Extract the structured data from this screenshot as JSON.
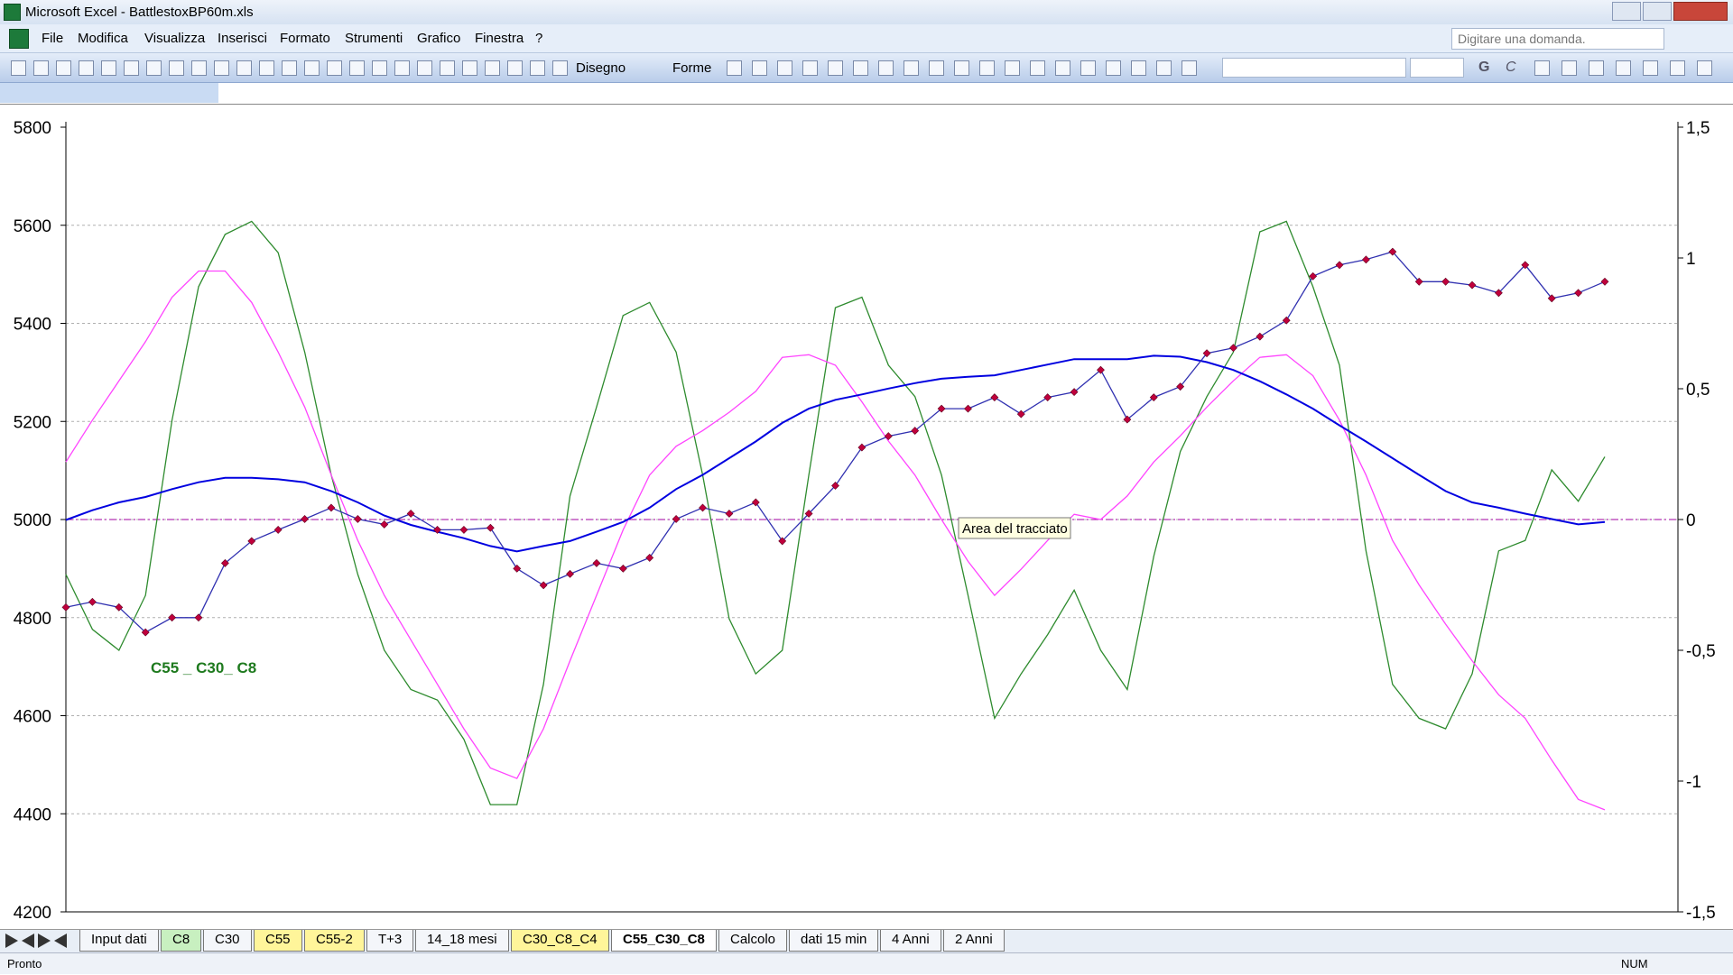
{
  "window": {
    "title": "Microsoft Excel - BattlestoxBP60m.xls"
  },
  "menu": [
    "File",
    "Modifica",
    "Visualizza",
    "Inserisci",
    "Formato",
    "Strumenti",
    "Grafico",
    "Finestra",
    "?"
  ],
  "help_box": "Digitare una domanda.",
  "toolbar": {
    "drawing": "Disegno",
    "shapes": "Forme",
    "bold": "G",
    "italic": "C"
  },
  "sheet_tabs": [
    {
      "label": "Input dati"
    },
    {
      "label": "C8",
      "color": "#c8f0c0"
    },
    {
      "label": "C30"
    },
    {
      "label": "C55",
      "color": "#fff59a"
    },
    {
      "label": "C55-2",
      "color": "#fff59a"
    },
    {
      "label": "T+3"
    },
    {
      "label": "14_18 mesi"
    },
    {
      "label": "C30_C8_C4",
      "color": "#fff59a"
    },
    {
      "label": "C55_C30_C8",
      "active": true
    },
    {
      "label": "Calcolo"
    },
    {
      "label": "dati 15 min"
    },
    {
      "label": "4 Anni"
    },
    {
      "label": "2 Anni"
    }
  ],
  "status": {
    "left": "Pronto",
    "num": "NUM"
  },
  "chart_data": {
    "type": "line",
    "annotation": "C55 _ C30_ C8",
    "tooltip": "Area del tracciato",
    "ylim": [
      4200,
      5800
    ],
    "yticks": [
      5800,
      5600,
      5400,
      5200,
      5000,
      4800,
      4600,
      4400,
      4200
    ],
    "y2lim": [
      -1.5,
      1.5
    ],
    "y2ticks": [
      {
        "value": 1.5,
        "label": "1,5"
      },
      1,
      {
        "value": 0.5,
        "label": "0,5"
      },
      0,
      {
        "value": -0.5,
        "label": "-0,5"
      },
      -1,
      {
        "value": -1.5,
        "label": "-1,5"
      }
    ],
    "grid": true,
    "reference_line": {
      "value": 0,
      "axis": "y2",
      "color": "#a000a0"
    },
    "series": [
      {
        "color": "#3030b0",
        "marker_color": "#c0003c",
        "markers": true,
        "values": [
          4821,
          4832,
          4821,
          4770,
          4800,
          4800,
          4911,
          4956,
          4979,
          5001,
          5024,
          5001,
          4990,
          5012,
          4979,
          4979,
          4983,
          4900,
          4866,
          4889,
          4911,
          4900,
          4922,
          5001,
          5024,
          5012,
          5035,
          4956,
          5012,
          5069,
          5147,
          5170,
          5181,
          5226,
          5226,
          5249,
          5215,
          5249,
          5260,
          5305,
          5204,
          5249,
          5271,
          5339,
          5350,
          5373,
          5406,
          5496,
          5519,
          5530,
          5546,
          5485,
          5485,
          5478,
          5462,
          5519,
          5451,
          5462,
          5485
        ]
      },
      {
        "color": "#0000e0",
        "width": 2,
        "values": [
          4999,
          5019,
          5035,
          5046,
          5062,
          5076,
          5085,
          5085,
          5082,
          5076,
          5058,
          5035,
          5008,
          4989,
          4975,
          4962,
          4946,
          4935,
          4946,
          4956,
          4975,
          4995,
          5024,
          5062,
          5091,
          5125,
          5159,
          5197,
          5226,
          5244,
          5255,
          5267,
          5278,
          5287,
          5291,
          5294,
          5305,
          5316,
          5327,
          5327,
          5327,
          5334,
          5332,
          5321,
          5305,
          5282,
          5255,
          5226,
          5192,
          5159,
          5125,
          5091,
          5058,
          5035,
          5024,
          5012,
          5001,
          4990,
          4995
        ]
      },
      {
        "color": "#2e8b2e",
        "axis": "y2",
        "values": [
          -0.21,
          -0.42,
          -0.5,
          -0.29,
          0.38,
          0.89,
          1.09,
          1.14,
          1.02,
          0.64,
          0.17,
          -0.21,
          -0.5,
          -0.65,
          -0.69,
          -0.84,
          -1.09,
          -1.09,
          -0.63,
          0.09,
          0.43,
          0.78,
          0.83,
          0.64,
          0.17,
          -0.38,
          -0.59,
          -0.5,
          0.17,
          0.81,
          0.85,
          0.59,
          0.47,
          0.17,
          -0.29,
          -0.76,
          -0.59,
          -0.44,
          -0.27,
          -0.5,
          -0.65,
          -0.14,
          0.26,
          0.47,
          0.64,
          1.1,
          1.14,
          0.89,
          0.59,
          -0.12,
          -0.63,
          -0.76,
          -0.8,
          -0.59,
          -0.12,
          -0.08,
          0.19,
          0.07,
          0.24
        ]
      },
      {
        "color": "#ff44ff",
        "axis": "y2",
        "values": [
          0.22,
          0.38,
          0.53,
          0.68,
          0.85,
          0.95,
          0.95,
          0.83,
          0.64,
          0.43,
          0.17,
          -0.08,
          -0.29,
          -0.46,
          -0.63,
          -0.8,
          -0.95,
          -0.99,
          -0.8,
          -0.54,
          -0.29,
          -0.04,
          0.17,
          0.28,
          0.34,
          0.41,
          0.49,
          0.62,
          0.63,
          0.59,
          0.45,
          0.3,
          0.17,
          0,
          -0.16,
          -0.29,
          -0.19,
          -0.08,
          0.02,
          0,
          0.09,
          0.22,
          0.32,
          0.43,
          0.53,
          0.62,
          0.63,
          0.55,
          0.38,
          0.17,
          -0.08,
          -0.25,
          -0.4,
          -0.54,
          -0.67,
          -0.76,
          -0.92,
          -1.07,
          -1.11
        ]
      }
    ]
  }
}
